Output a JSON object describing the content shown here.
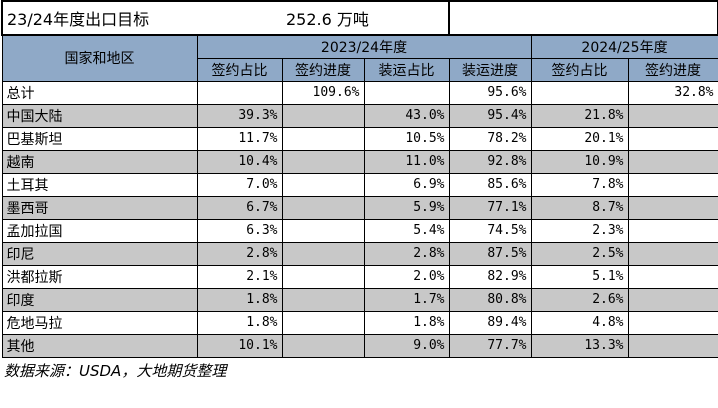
{
  "title": {
    "text": "23/24年度出口目标",
    "value": "252.6 万吨"
  },
  "header": {
    "region_label": "国家和地区",
    "group_2023": "2023/24年度",
    "group_2024": "2024/25年度",
    "sub": [
      "签约占比",
      "签约进度",
      "装运占比",
      "装运进度",
      "签约占比",
      "签约进度"
    ]
  },
  "rows": [
    {
      "name": "总计",
      "c": [
        "",
        "109.6%",
        "",
        "95.6%",
        "",
        "32.8%"
      ]
    },
    {
      "name": "中国大陆",
      "c": [
        "39.3%",
        "",
        "43.0%",
        "95.4%",
        "21.8%",
        ""
      ]
    },
    {
      "name": "巴基斯坦",
      "c": [
        "11.7%",
        "",
        "10.5%",
        "78.2%",
        "20.1%",
        ""
      ]
    },
    {
      "name": "越南",
      "c": [
        "10.4%",
        "",
        "11.0%",
        "92.8%",
        "10.9%",
        ""
      ]
    },
    {
      "name": "土耳其",
      "c": [
        "7.0%",
        "",
        "6.9%",
        "85.6%",
        "7.8%",
        ""
      ]
    },
    {
      "name": "墨西哥",
      "c": [
        "6.7%",
        "",
        "5.9%",
        "77.1%",
        "8.7%",
        ""
      ]
    },
    {
      "name": "孟加拉国",
      "c": [
        "6.3%",
        "",
        "5.4%",
        "74.5%",
        "2.3%",
        ""
      ]
    },
    {
      "name": "印尼",
      "c": [
        "2.8%",
        "",
        "2.8%",
        "87.5%",
        "2.5%",
        ""
      ]
    },
    {
      "name": "洪都拉斯",
      "c": [
        "2.1%",
        "",
        "2.0%",
        "82.9%",
        "5.1%",
        ""
      ]
    },
    {
      "name": "印度",
      "c": [
        "1.8%",
        "",
        "1.7%",
        "80.8%",
        "2.6%",
        ""
      ]
    },
    {
      "name": "危地马拉",
      "c": [
        "1.8%",
        "",
        "1.8%",
        "89.4%",
        "4.8%",
        ""
      ]
    },
    {
      "name": "其他",
      "c": [
        "10.1%",
        "",
        "9.0%",
        "77.7%",
        "13.3%",
        ""
      ]
    }
  ],
  "source": "数据来源：USDA，大地期货整理",
  "colors": {
    "header_bg": "#8fa9c7",
    "shade_bg": "#c8c8c8"
  }
}
